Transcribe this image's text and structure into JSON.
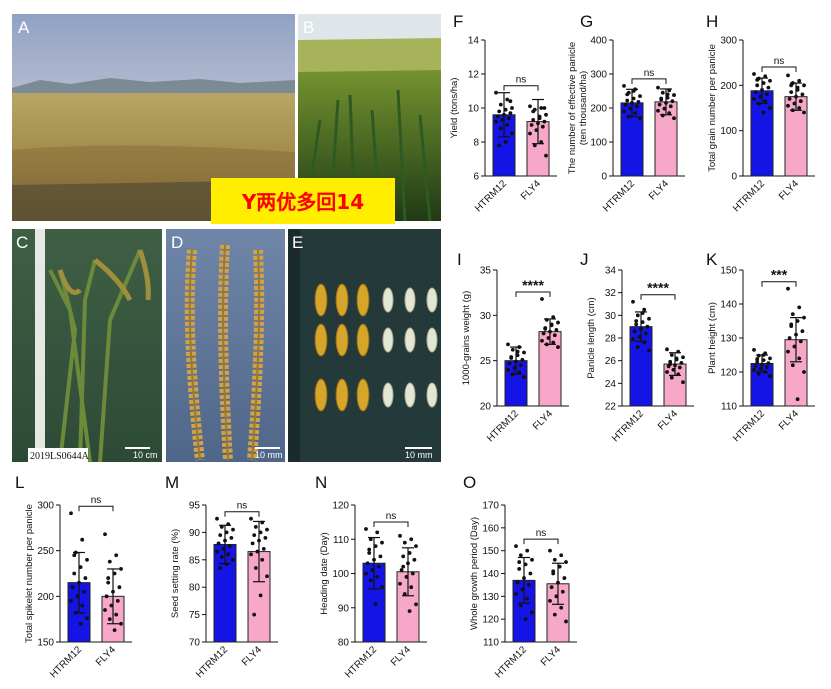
{
  "banner": {
    "text": "Y两优多回14",
    "bg_color": "#ffee00",
    "text_color": "#ff0000"
  },
  "photos": [
    {
      "letter": "A",
      "subject": "rice field landscape"
    },
    {
      "letter": "B",
      "subject": "rice plants close-up in field"
    },
    {
      "letter": "C",
      "subject": "whole rice plant with ruler",
      "tag": "2019LS0644A",
      "scale": "10 cm"
    },
    {
      "letter": "D",
      "subject": "three rice panicles",
      "scale": "10 mm"
    },
    {
      "letter": "E",
      "subject": "grains and brown rice",
      "scale": "10 mm"
    }
  ],
  "colors": {
    "htrm12": "#1414e6",
    "fly4": "#f7a8c8",
    "outline": "#222222",
    "dot": "#111111"
  },
  "chart_data": [
    {
      "panel": "F",
      "type": "bar",
      "categories": [
        "HTRM12",
        "FLY4"
      ],
      "ylabel": "Yield (tons/ha)",
      "ylim": [
        6,
        14
      ],
      "yticks": [
        6,
        8,
        10,
        12,
        14
      ],
      "values": [
        9.6,
        9.2
      ],
      "errors": [
        1.3,
        1.3
      ],
      "sig": "ns",
      "points": [
        [
          10.9,
          10.5,
          10.2,
          10.0,
          9.9,
          9.8,
          9.7,
          9.6,
          9.5,
          9.4,
          9.3,
          9.2,
          9.0,
          8.8,
          8.5,
          8.0,
          7.8,
          10.4
        ],
        [
          10.1,
          10.0,
          9.9,
          9.6,
          9.5,
          9.3,
          9.2,
          9.1,
          9.0,
          8.9,
          8.7,
          8.5,
          8.0,
          7.8,
          7.2,
          9.4,
          9.8,
          10.0
        ]
      ]
    },
    {
      "panel": "G",
      "type": "bar",
      "categories": [
        "HTRM12",
        "FLY4"
      ],
      "ylabel": "The number of effective panicle",
      "ylabel2": "(ten thousand/ha)",
      "ylim": [
        0,
        400
      ],
      "yticks": [
        0,
        100,
        200,
        300,
        400
      ],
      "values": [
        215,
        218
      ],
      "errors": [
        40,
        38
      ],
      "sig": "ns",
      "points": [
        [
          265,
          255,
          245,
          235,
          228,
          222,
          218,
          215,
          210,
          205,
          198,
          190,
          185,
          175,
          170,
          250,
          240
        ],
        [
          260,
          252,
          245,
          238,
          230,
          225,
          220,
          215,
          210,
          205,
          198,
          192,
          185,
          178,
          170,
          240,
          228
        ]
      ]
    },
    {
      "panel": "H",
      "type": "bar",
      "categories": [
        "HTRM12",
        "FLY4"
      ],
      "ylabel": "Total grain number per panicle",
      "ylim": [
        0,
        300
      ],
      "yticks": [
        0,
        100,
        200,
        300
      ],
      "values": [
        188,
        175
      ],
      "errors": [
        28,
        30
      ],
      "sig": "ns",
      "points": [
        [
          225,
          220,
          215,
          210,
          205,
          200,
          195,
          190,
          185,
          180,
          175,
          170,
          165,
          160,
          150,
          140,
          212
        ],
        [
          222,
          210,
          205,
          200,
          195,
          185,
          180,
          175,
          170,
          165,
          160,
          155,
          150,
          145,
          140,
          190,
          200
        ]
      ]
    },
    {
      "panel": "I",
      "type": "bar",
      "categories": [
        "HTRM12",
        "FLY4"
      ],
      "ylabel": "1000-grains weight (g)",
      "ylim": [
        20,
        35
      ],
      "yticks": [
        20,
        25,
        30,
        35
      ],
      "values": [
        25.0,
        28.2
      ],
      "errors": [
        1.5,
        1.4
      ],
      "sig": "****",
      "points": [
        [
          26.8,
          26.5,
          26.2,
          25.9,
          25.6,
          25.3,
          25.1,
          24.9,
          24.7,
          24.5,
          24.2,
          24.0,
          23.7,
          23.5,
          23.2,
          26.0,
          25.4
        ],
        [
          31.8,
          29.8,
          29.5,
          29.2,
          28.9,
          28.6,
          28.4,
          28.2,
          28.0,
          27.8,
          27.5,
          27.2,
          27.0,
          26.8,
          26.5,
          29.0,
          28.5
        ]
      ]
    },
    {
      "panel": "J",
      "type": "bar",
      "categories": [
        "HTRM12",
        "FLY4"
      ],
      "ylabel": "Panicle length (cm)",
      "ylim": [
        22,
        34
      ],
      "yticks": [
        22,
        24,
        26,
        28,
        30,
        32,
        34
      ],
      "values": [
        29.0,
        25.7
      ],
      "errors": [
        1.3,
        1.0
      ],
      "sig": "****",
      "points": [
        [
          31.2,
          30.5,
          30.0,
          29.7,
          29.4,
          29.2,
          29.0,
          28.8,
          28.6,
          28.4,
          28.1,
          27.9,
          27.6,
          27.2,
          26.9,
          30.2,
          29.5
        ],
        [
          27.0,
          26.8,
          26.5,
          26.3,
          26.1,
          25.9,
          25.8,
          25.6,
          25.5,
          25.4,
          25.2,
          25.0,
          24.8,
          24.5,
          24.1,
          26.2,
          25.7
        ]
      ]
    },
    {
      "panel": "K",
      "type": "bar",
      "categories": [
        "HTRM12",
        "FLY4"
      ],
      "ylabel": "Plant height (cm)",
      "ylim": [
        110,
        150
      ],
      "yticks": [
        110,
        120,
        130,
        140,
        150
      ],
      "values": [
        122.5,
        129.5
      ],
      "errors": [
        2.5,
        6.5
      ],
      "sig": "***",
      "points": [
        [
          126.5,
          125.5,
          124.8,
          124.0,
          123.5,
          123.0,
          122.6,
          122.2,
          121.8,
          121.4,
          121.0,
          120.6,
          120.0,
          119.5,
          118.8,
          125.0,
          123.8
        ],
        [
          144.5,
          139.0,
          137.0,
          136.0,
          135.0,
          133.5,
          132.0,
          131.0,
          130.0,
          129.0,
          127.5,
          126.0,
          124.0,
          122.0,
          120.0,
          112.0,
          134.0
        ]
      ]
    },
    {
      "panel": "L",
      "type": "bar",
      "categories": [
        "HTRM12",
        "FLY4"
      ],
      "ylabel": "Total spikelet number per panicle",
      "ylim": [
        150,
        300
      ],
      "yticks": [
        150,
        200,
        250,
        300
      ],
      "values": [
        215,
        200
      ],
      "errors": [
        33,
        30
      ],
      "sig": "ns",
      "points": [
        [
          291,
          262,
          248,
          240,
          232,
          225,
          220,
          215,
          210,
          205,
          200,
          195,
          190,
          182,
          176,
          170,
          245
        ],
        [
          268,
          245,
          238,
          230,
          225,
          215,
          210,
          205,
          200,
          195,
          190,
          185,
          180,
          175,
          170,
          163,
          220
        ]
      ]
    },
    {
      "panel": "M",
      "type": "bar",
      "categories": [
        "HTRM12",
        "FLY4"
      ],
      "ylabel": "Seed setting rate (%)",
      "ylim": [
        70,
        95
      ],
      "yticks": [
        70,
        75,
        80,
        85,
        90,
        95
      ],
      "values": [
        87.8,
        86.5
      ],
      "errors": [
        3.5,
        5.5
      ],
      "sig": "ns",
      "points": [
        [
          92.5,
          91.5,
          91.0,
          90.5,
          90.0,
          89.5,
          89.0,
          88.5,
          88.0,
          87.5,
          87.0,
          86.5,
          86.0,
          85.5,
          85.0,
          84.2,
          83.5
        ],
        [
          92.5,
          91.8,
          91.0,
          90.5,
          90.0,
          89.5,
          89.0,
          88.5,
          88.0,
          87.0,
          86.5,
          86.0,
          85.0,
          83.5,
          82.0,
          78.5,
          75.0
        ]
      ]
    },
    {
      "panel": "N",
      "type": "bar",
      "categories": [
        "HTRM12",
        "FLY4"
      ],
      "ylabel": "Heading date (Day)",
      "ylim": [
        80,
        120
      ],
      "yticks": [
        80,
        90,
        100,
        110,
        120
      ],
      "values": [
        103,
        100.5
      ],
      "errors": [
        7.5,
        7.0
      ],
      "sig": "ns",
      "points": [
        [
          113,
          112,
          110,
          109,
          108,
          107,
          105,
          104,
          103,
          102,
          101,
          100,
          99,
          98,
          96,
          91,
          106
        ],
        [
          111,
          110,
          109,
          108,
          106,
          105,
          104,
          103,
          101,
          100,
          99,
          97,
          96,
          94,
          91,
          89,
          102
        ]
      ]
    },
    {
      "panel": "O",
      "type": "bar",
      "categories": [
        "HTRM12",
        "FLY4"
      ],
      "ylabel": "Whole growth period (Day)",
      "ylim": [
        110,
        170
      ],
      "yticks": [
        110,
        120,
        130,
        140,
        150,
        160,
        170
      ],
      "values": [
        137,
        135.5
      ],
      "errors": [
        10,
        9
      ],
      "sig": "ns",
      "points": [
        [
          152,
          150,
          148,
          146,
          144,
          142,
          140,
          138,
          136,
          135,
          133,
          131,
          129,
          126,
          123,
          120,
          145
        ],
        [
          150,
          148,
          146,
          145,
          143,
          140,
          138,
          136,
          134,
          132,
          130,
          128,
          125,
          122,
          119,
          143,
          141
        ]
      ]
    }
  ]
}
